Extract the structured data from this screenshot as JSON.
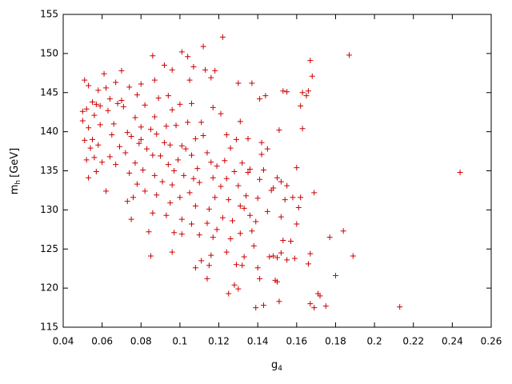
{
  "chart_data": {
    "type": "scatter",
    "marker": "+",
    "x_label": "g",
    "x_label_sub": "4",
    "y_label": "m",
    "y_label_sub": "h",
    "y_label_unit": "[GeV]",
    "xlim": [
      0.04,
      0.26
    ],
    "xticks": [
      0.04,
      0.06,
      0.08,
      0.1,
      0.12,
      0.14,
      0.16,
      0.18,
      0.2,
      0.22,
      0.24,
      0.26
    ],
    "ylim": [
      115,
      155
    ],
    "yticks": [
      115,
      120,
      125,
      130,
      135,
      140,
      145,
      150,
      155
    ],
    "series": [
      {
        "color": "#cc0000",
        "x": [
          0.187,
          0.244,
          0.213,
          0.122,
          0.167,
          0.168,
          0.189,
          0.184,
          0.177,
          0.18,
          0.175,
          0.171,
          0.172,
          0.167,
          0.169,
          0.169,
          0.163,
          0.165,
          0.166,
          0.162,
          0.163,
          0.16,
          0.161,
          0.162,
          0.158,
          0.157,
          0.16,
          0.167,
          0.166,
          0.159,
          0.155,
          0.15,
          0.152,
          0.148,
          0.146,
          0.149,
          0.15,
          0.151,
          0.143,
          0.139,
          0.141,
          0.14,
          0.138,
          0.137,
          0.136,
          0.153,
          0.155,
          0.151,
          0.15,
          0.148,
          0.152,
          0.154,
          0.155,
          0.152,
          0.153,
          0.144,
          0.141,
          0.137,
          0.142,
          0.142,
          0.143,
          0.14,
          0.141,
          0.13,
          0.131,
          0.129,
          0.135,
          0.132,
          0.135,
          0.13,
          0.131,
          0.133,
          0.131,
          0.133,
          0.129,
          0.128,
          0.13,
          0.125,
          0.124,
          0.126,
          0.127,
          0.125,
          0.124,
          0.123,
          0.126,
          0.124,
          0.121,
          0.117,
          0.118,
          0.113,
          0.116,
          0.112,
          0.111,
          0.114,
          0.116,
          0.117,
          0.118,
          0.115,
          0.114,
          0.117,
          0.116,
          0.115,
          0.114,
          0.108,
          0.111,
          0.11,
          0.106,
          0.108,
          0.105,
          0.107,
          0.109,
          0.106,
          0.108,
          0.104,
          0.106,
          0.105,
          0.107,
          0.104,
          0.101,
          0.1,
          0.098,
          0.101,
          0.099,
          0.102,
          0.1,
          0.101,
          0.101,
          0.096,
          0.097,
          0.093,
          0.095,
          0.096,
          0.094,
          0.095,
          0.093,
          0.096,
          0.094,
          0.096,
          0.092,
          0.086,
          0.087,
          0.089,
          0.087,
          0.088,
          0.086,
          0.087,
          0.088,
          0.086,
          0.084,
          0.085,
          0.082,
          0.081,
          0.083,
          0.08,
          0.082,
          0.08,
          0.078,
          0.077,
          0.079,
          0.077,
          0.078,
          0.076,
          0.075,
          0.073,
          0.074,
          0.072,
          0.073,
          0.071,
          0.074,
          0.07,
          0.067,
          0.068,
          0.066,
          0.069,
          0.067,
          0.064,
          0.065,
          0.063,
          0.062,
          0.061,
          0.062,
          0.06,
          0.058,
          0.059,
          0.057,
          0.058,
          0.056,
          0.055,
          0.056,
          0.057,
          0.054,
          0.053,
          0.052,
          0.053,
          0.051,
          0.05,
          0.051,
          0.052,
          0.053,
          0.05,
          0.055,
          0.059,
          0.064,
          0.07,
          0.075,
          0.08,
          0.085,
          0.09,
          0.091,
          0.092,
          0.097,
          0.103,
          0.11,
          0.112,
          0.119,
          0.121,
          0.122,
          0.119,
          0.128,
          0.134,
          0.136,
          0.145,
          0.147,
          0.139,
          0.145,
          0.132
        ],
        "y": [
          149.8,
          134.8,
          117.6,
          152.1,
          149.1,
          147.1,
          124.1,
          127.3,
          126.5,
          121.6,
          117.7,
          119.3,
          119.0,
          118.0,
          117.5,
          132.2,
          145.0,
          144.6,
          145.2,
          143.3,
          140.4,
          135.4,
          130.3,
          131.6,
          131.6,
          126.0,
          128.2,
          124.4,
          123.1,
          123.8,
          123.6,
          123.9,
          124.5,
          124.1,
          124.0,
          121.0,
          120.8,
          118.3,
          117.8,
          117.5,
          121.2,
          122.6,
          125.4,
          127.3,
          129.3,
          145.2,
          145.1,
          140.2,
          134.1,
          132.8,
          133.6,
          131.3,
          133.1,
          129.1,
          126.1,
          144.6,
          144.2,
          146.2,
          138.6,
          137.1,
          135.1,
          131.5,
          133.9,
          146.2,
          141.3,
          139.0,
          139.1,
          136.0,
          134.8,
          133.1,
          130.5,
          130.2,
          127.0,
          124.0,
          123.0,
          120.4,
          119.9,
          119.3,
          124.6,
          126.3,
          128.6,
          131.3,
          134.0,
          136.3,
          137.9,
          139.6,
          142.3,
          143.1,
          147.8,
          147.9,
          146.9,
          150.9,
          141.2,
          137.3,
          136.1,
          134.1,
          131.6,
          130.1,
          128.3,
          126.5,
          124.2,
          122.9,
          121.2,
          122.6,
          123.5,
          126.8,
          128.2,
          130.5,
          132.2,
          134.0,
          135.3,
          137.0,
          139.1,
          141.2,
          143.6,
          146.6,
          148.3,
          149.6,
          150.2,
          143.5,
          140.8,
          138.2,
          136.4,
          134.4,
          131.6,
          128.8,
          126.9,
          124.6,
          127.1,
          129.3,
          130.9,
          133.2,
          135.8,
          138.3,
          140.7,
          142.8,
          144.6,
          147.9,
          148.5,
          149.7,
          146.6,
          144.3,
          141.9,
          139.7,
          137.0,
          134.4,
          131.9,
          129.6,
          127.2,
          124.1,
          132.4,
          135.1,
          137.8,
          140.6,
          143.4,
          146.1,
          144.7,
          141.8,
          138.5,
          136.0,
          133.3,
          131.6,
          128.8,
          131.1,
          134.7,
          137.3,
          139.9,
          143.2,
          145.7,
          147.8,
          146.3,
          143.6,
          141.0,
          138.1,
          135.8,
          136.8,
          139.6,
          142.7,
          145.6,
          147.4,
          132.4,
          136.1,
          138.3,
          140.9,
          143.5,
          145.3,
          142.1,
          139.0,
          136.7,
          134.9,
          137.9,
          140.5,
          142.9,
          145.9,
          146.6,
          142.6,
          138.9,
          136.4,
          134.1,
          141.4,
          143.8,
          143.3,
          144.2,
          144.0,
          139.4,
          139.0,
          140.3,
          136.9,
          133.6,
          138.6,
          135.0,
          137.8,
          133.5,
          139.5,
          135.6,
          133.0,
          129.0,
          127.5,
          134.9,
          131.8,
          135.2,
          137.8,
          132.5,
          128.5,
          129.8,
          122.9
        ]
      }
    ]
  }
}
